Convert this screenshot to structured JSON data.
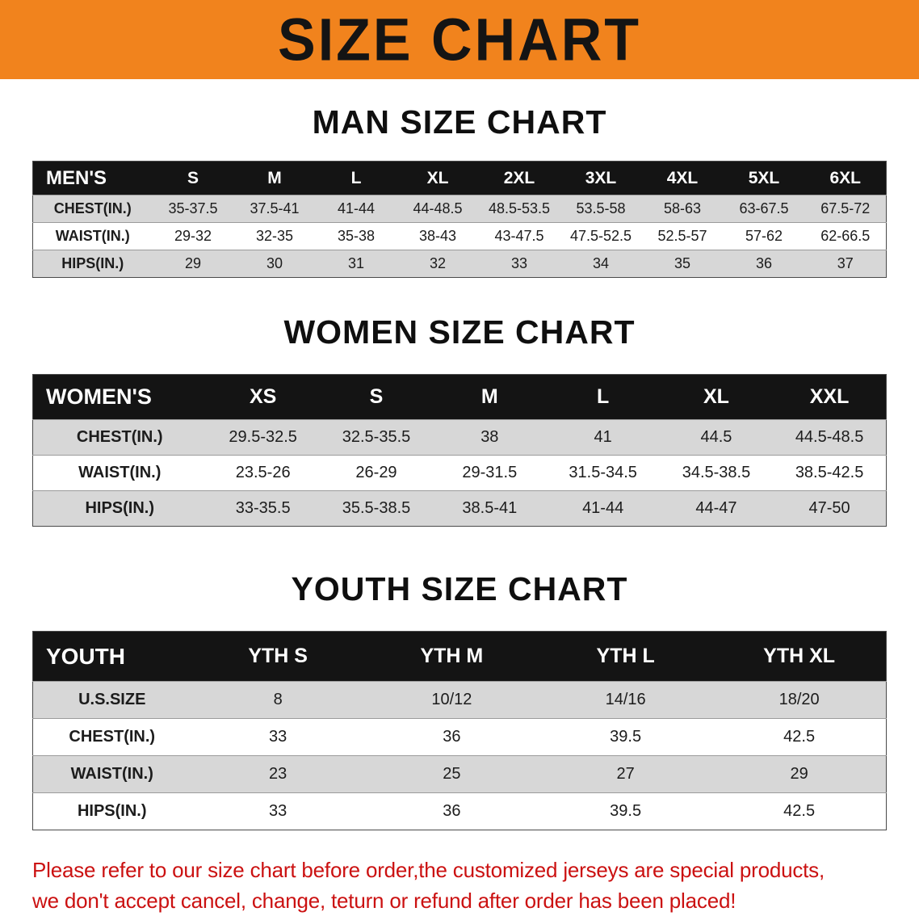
{
  "banner": {
    "title": "SIZE CHART"
  },
  "sections": {
    "men": {
      "heading": "MAN SIZE CHART",
      "table": {
        "header": [
          "MEN'S",
          "S",
          "M",
          "L",
          "XL",
          "2XL",
          "3XL",
          "4XL",
          "5XL",
          "6XL"
        ],
        "rows": [
          [
            "CHEST(IN.)",
            "35-37.5",
            "37.5-41",
            "41-44",
            "44-48.5",
            "48.5-53.5",
            "53.5-58",
            "58-63",
            "63-67.5",
            "67.5-72"
          ],
          [
            "WAIST(IN.)",
            "29-32",
            "32-35",
            "35-38",
            "38-43",
            "43-47.5",
            "47.5-52.5",
            "52.5-57",
            "57-62",
            "62-66.5"
          ],
          [
            "HIPS(IN.)",
            "29",
            "30",
            "31",
            "32",
            "33",
            "34",
            "35",
            "36",
            "37"
          ]
        ]
      }
    },
    "women": {
      "heading": "WOMEN SIZE CHART",
      "table": {
        "header": [
          "WOMEN'S",
          "XS",
          "S",
          "M",
          "L",
          "XL",
          "XXL"
        ],
        "rows": [
          [
            "CHEST(IN.)",
            "29.5-32.5",
            "32.5-35.5",
            "38",
            "41",
            "44.5",
            "44.5-48.5"
          ],
          [
            "WAIST(IN.)",
            "23.5-26",
            "26-29",
            "29-31.5",
            "31.5-34.5",
            "34.5-38.5",
            "38.5-42.5"
          ],
          [
            "HIPS(IN.)",
            "33-35.5",
            "35.5-38.5",
            "38.5-41",
            "41-44",
            "44-47",
            "47-50"
          ]
        ]
      }
    },
    "youth": {
      "heading": "YOUTH SIZE CHART",
      "table": {
        "header": [
          "YOUTH",
          "YTH S",
          "YTH M",
          "YTH L",
          "YTH XL"
        ],
        "rows": [
          [
            "U.S.SIZE",
            "8",
            "10/12",
            "14/16",
            "18/20"
          ],
          [
            "CHEST(IN.)",
            "33",
            "36",
            "39.5",
            "42.5"
          ],
          [
            "WAIST(IN.)",
            "23",
            "25",
            "27",
            "29"
          ],
          [
            "HIPS(IN.)",
            "33",
            "36",
            "39.5",
            "42.5"
          ]
        ]
      }
    }
  },
  "disclaimer": {
    "line1": "Please refer to our size chart before order,the customized jerseys are special products,",
    "line2": "we don't accept cancel, change, teturn or refund after order has been placed!"
  },
  "colors": {
    "banner_bg": "#f1831d",
    "table_header_bg": "#141414",
    "row_stripe": "#d7d7d7",
    "disclaimer_text": "#cb1111"
  }
}
